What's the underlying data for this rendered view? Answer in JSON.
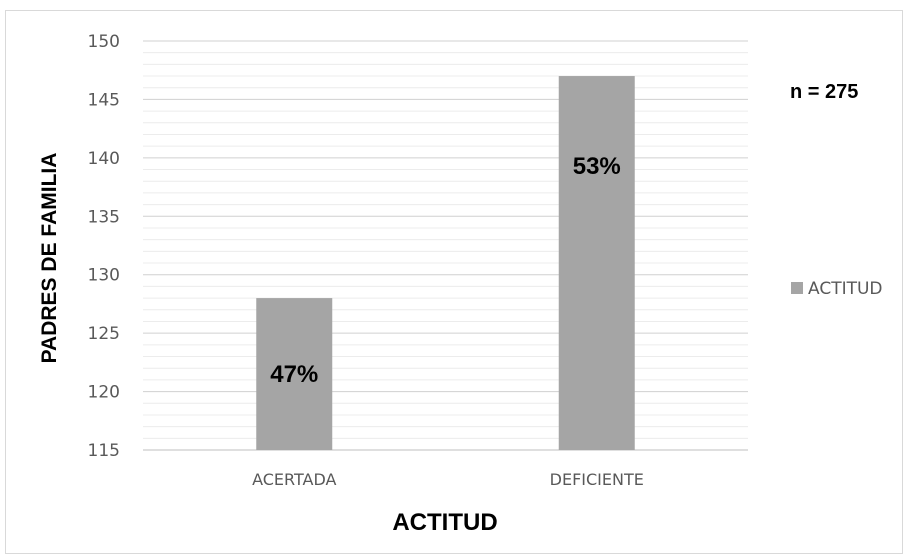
{
  "chart_data": {
    "type": "bar",
    "categories": [
      "ACERTADA",
      "DEFICIENTE"
    ],
    "series": [
      {
        "name": "ACTITUD",
        "values": [
          128,
          147
        ],
        "data_labels": [
          "47%",
          "53%"
        ]
      }
    ],
    "xlabel": "ACTITUD",
    "ylabel": "PADRES DE FAMILIA",
    "ylim": [
      115,
      150
    ],
    "yticks": [
      115,
      120,
      125,
      130,
      135,
      140,
      145,
      150
    ],
    "grid": true,
    "legend_position": "right",
    "bar_color": "#a5a5a5",
    "annotation": "n = 275"
  }
}
